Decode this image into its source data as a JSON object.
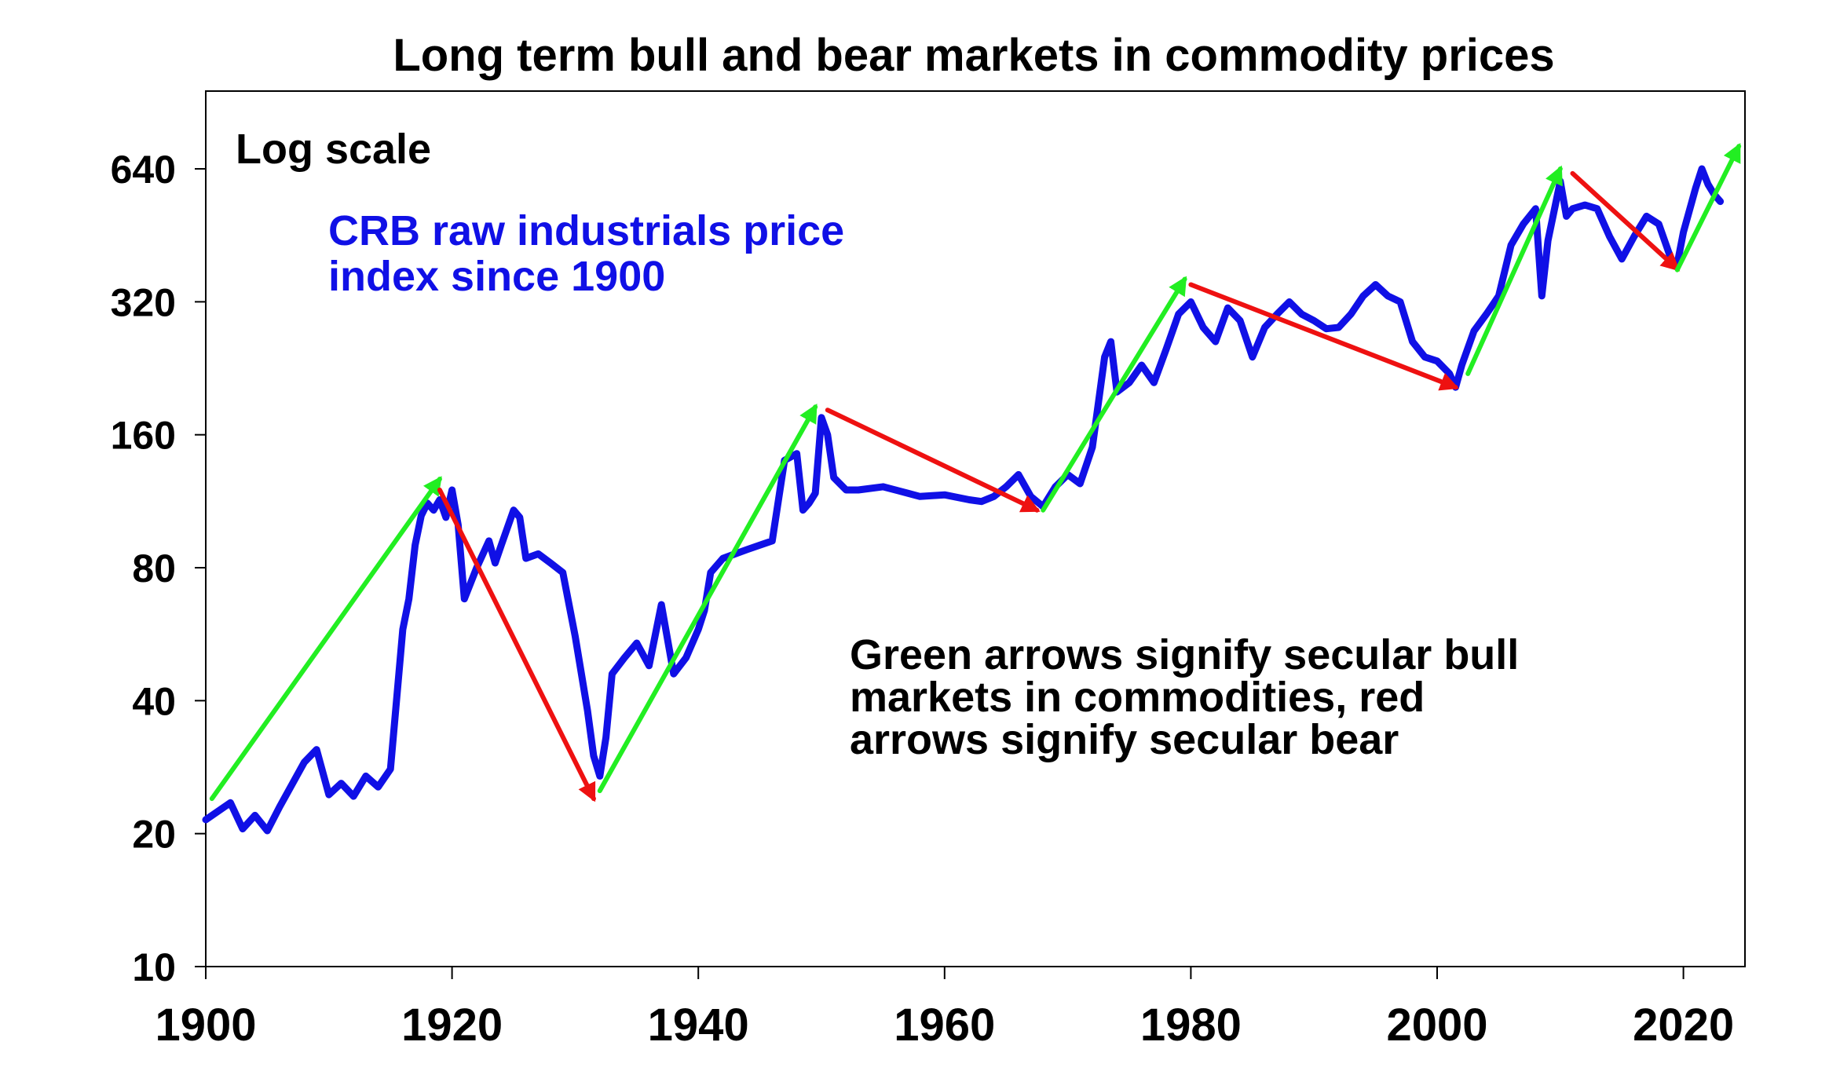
{
  "chart_data": {
    "type": "line",
    "title": "Long term bull and bear markets in commodity prices",
    "scale_label": "Log scale",
    "yscale": "log2",
    "ylim": [
      10,
      960
    ],
    "xlim": [
      1900,
      2025
    ],
    "yticks": [
      10,
      20,
      40,
      80,
      160,
      320,
      640
    ],
    "ytick_labels": [
      "10",
      "20",
      "40",
      "80",
      "160",
      "320",
      "640"
    ],
    "xticks": [
      1900,
      1920,
      1940,
      1960,
      1980,
      2000,
      2020
    ],
    "xtick_labels": [
      "1900",
      "1920",
      "1940",
      "1960",
      "1980",
      "2000",
      "2020"
    ],
    "series_label": [
      "CRB raw industrials price",
      "index since 1900"
    ],
    "note": [
      "Green arrows signify secular bull",
      "markets in commodities, red",
      "arrows signify secular bear"
    ],
    "colors": {
      "series": "#1010e6",
      "bull": "#22ee22",
      "bear": "#ee1111",
      "text": "#000000"
    },
    "series": [
      {
        "name": "CRB raw industrials price index since 1900",
        "x": [
          1900,
          1902,
          1903,
          1904,
          1905,
          1906,
          1908,
          1909,
          1910,
          1911,
          1912,
          1913,
          1914,
          1915,
          1916,
          1916.5,
          1917,
          1917.5,
          1918,
          1918.5,
          1919,
          1919.5,
          1920,
          1920.5,
          1921,
          1922,
          1923,
          1923.5,
          1924,
          1925,
          1925.5,
          1926,
          1927,
          1928,
          1929,
          1930,
          1931,
          1931.5,
          1932,
          1932.5,
          1933,
          1934,
          1935,
          1936,
          1937,
          1938,
          1939,
          1940,
          1940.5,
          1941,
          1942,
          1943,
          1944,
          1945,
          1946,
          1947,
          1948,
          1948.5,
          1949,
          1949.5,
          1950,
          1950.5,
          1951,
          1952,
          1953,
          1955,
          1957,
          1958,
          1960,
          1962,
          1963,
          1964,
          1965,
          1966,
          1967,
          1968,
          1969,
          1970,
          1971,
          1972,
          1973,
          1973.5,
          1974,
          1975,
          1976,
          1977,
          1978,
          1979,
          1980,
          1981,
          1982,
          1983,
          1984,
          1985,
          1986,
          1987,
          1988,
          1989,
          1990,
          1991,
          1992,
          1993,
          1994,
          1995,
          1996,
          1997,
          1998,
          1999,
          2000,
          2001,
          2001.5,
          2002,
          2003,
          2004,
          2005,
          2006,
          2007,
          2008,
          2008.5,
          2009,
          2010,
          2010.5,
          2011,
          2012,
          2013,
          2014,
          2015,
          2016,
          2017,
          2018,
          2019,
          2019.5,
          2020,
          2021,
          2021.5,
          2022,
          2022.5,
          2023
        ],
        "values": [
          21.5,
          23.5,
          20.5,
          22,
          20.3,
          23,
          29,
          31,
          24.5,
          26,
          24.3,
          27,
          25.5,
          28,
          58,
          68,
          90,
          105,
          112,
          108,
          114,
          104,
          120,
          100,
          68,
          80,
          92,
          82,
          90,
          108,
          104,
          84,
          86,
          82,
          78,
          56,
          38,
          30,
          27,
          33,
          46,
          50,
          54,
          48,
          66,
          46,
          50,
          58,
          64,
          78,
          84,
          86,
          88,
          90,
          92,
          140,
          145,
          108,
          112,
          118,
          175,
          160,
          128,
          120,
          120,
          122,
          118,
          116,
          117,
          114,
          113,
          116,
          122,
          130,
          116,
          110,
          122,
          130,
          124,
          150,
          240,
          260,
          200,
          210,
          230,
          210,
          250,
          300,
          320,
          280,
          260,
          310,
          290,
          240,
          280,
          300,
          320,
          300,
          290,
          278,
          280,
          300,
          330,
          350,
          330,
          320,
          260,
          240,
          235,
          220,
          205,
          230,
          275,
          300,
          330,
          430,
          480,
          520,
          330,
          440,
          600,
          500,
          520,
          530,
          520,
          450,
          400,
          450,
          500,
          480,
          400,
          390,
          460,
          580,
          640,
          590,
          560,
          540
        ]
      }
    ],
    "arrows": [
      {
        "trend": "bull",
        "from": [
          1900.5,
          24
        ],
        "to": [
          1919,
          127
        ]
      },
      {
        "trend": "bear",
        "from": [
          1919,
          120
        ],
        "to": [
          1931.5,
          24
        ]
      },
      {
        "trend": "bull",
        "from": [
          1932,
          25
        ],
        "to": [
          1949.5,
          185
        ]
      },
      {
        "trend": "bear",
        "from": [
          1950.5,
          182
        ],
        "to": [
          1967.5,
          108
        ]
      },
      {
        "trend": "bull",
        "from": [
          1968,
          108
        ],
        "to": [
          1979.5,
          360
        ]
      },
      {
        "trend": "bear",
        "from": [
          1980,
          350
        ],
        "to": [
          2001.5,
          205
        ]
      },
      {
        "trend": "bull",
        "from": [
          2002.5,
          220
        ],
        "to": [
          2010,
          640
        ]
      },
      {
        "trend": "bear",
        "from": [
          2011,
          625
        ],
        "to": [
          2019.5,
          380
        ]
      },
      {
        "trend": "bull",
        "from": [
          2019.5,
          378
        ],
        "to": [
          2024.5,
          720
        ]
      }
    ]
  }
}
